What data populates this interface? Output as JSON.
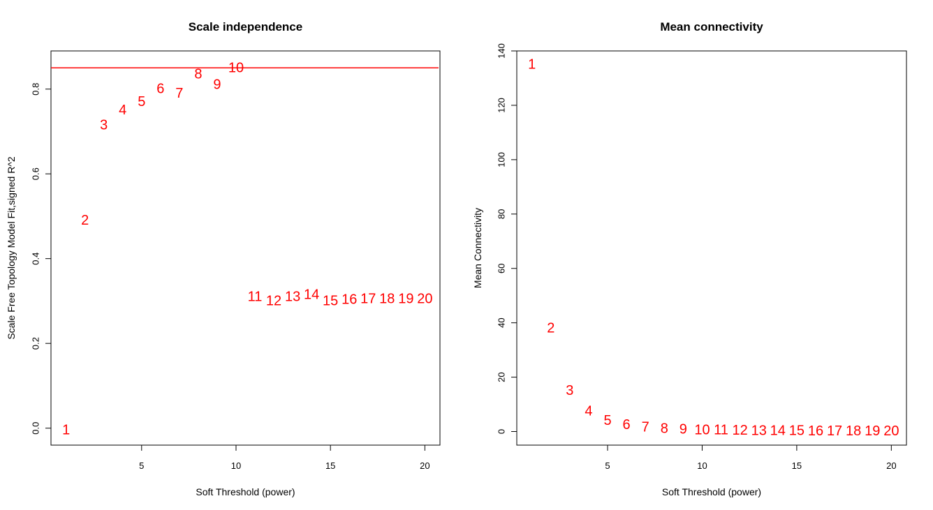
{
  "chart_data": [
    {
      "type": "scatter",
      "title": "Scale independence",
      "xlabel": "Soft Threshold (power)",
      "ylabel": "Scale Free Topology Model Fit,signed R^2",
      "xlim": [
        0.2,
        20.8
      ],
      "ylim": [
        -0.04,
        0.89
      ],
      "xticks": [
        "5",
        "10",
        "15",
        "20"
      ],
      "yticks": [
        "0.0",
        "0.2",
        "0.4",
        "0.6",
        "0.8"
      ],
      "reference_line_y": 0.85,
      "reference_line_color": "#ff0000",
      "point_color": "#ff0000",
      "points": [
        {
          "label": "1",
          "x": 1,
          "y": -0.005
        },
        {
          "label": "2",
          "x": 2,
          "y": 0.49
        },
        {
          "label": "3",
          "x": 3,
          "y": 0.715
        },
        {
          "label": "4",
          "x": 4,
          "y": 0.75
        },
        {
          "label": "5",
          "x": 5,
          "y": 0.77
        },
        {
          "label": "6",
          "x": 6,
          "y": 0.8
        },
        {
          "label": "7",
          "x": 7,
          "y": 0.79
        },
        {
          "label": "8",
          "x": 8,
          "y": 0.835
        },
        {
          "label": "9",
          "x": 9,
          "y": 0.81
        },
        {
          "label": "10",
          "x": 10,
          "y": 0.85
        },
        {
          "label": "11",
          "x": 11,
          "y": 0.31
        },
        {
          "label": "12",
          "x": 12,
          "y": 0.3
        },
        {
          "label": "13",
          "x": 13,
          "y": 0.31
        },
        {
          "label": "14",
          "x": 14,
          "y": 0.315
        },
        {
          "label": "15",
          "x": 15,
          "y": 0.3
        },
        {
          "label": "16",
          "x": 16,
          "y": 0.303
        },
        {
          "label": "17",
          "x": 17,
          "y": 0.305
        },
        {
          "label": "18",
          "x": 18,
          "y": 0.305
        },
        {
          "label": "19",
          "x": 19,
          "y": 0.305
        },
        {
          "label": "20",
          "x": 20,
          "y": 0.305
        }
      ]
    },
    {
      "type": "scatter",
      "title": "Mean connectivity",
      "xlabel": "Soft Threshold (power)",
      "ylabel": "Mean Connectivity",
      "xlim": [
        0.2,
        20.8
      ],
      "ylim": [
        -5,
        140
      ],
      "xticks": [
        "5",
        "10",
        "15",
        "20"
      ],
      "yticks": [
        "0",
        "20",
        "40",
        "60",
        "80",
        "100",
        "120",
        "140"
      ],
      "point_color": "#ff0000",
      "points": [
        {
          "label": "1",
          "x": 1,
          "y": 135
        },
        {
          "label": "2",
          "x": 2,
          "y": 38
        },
        {
          "label": "3",
          "x": 3,
          "y": 15
        },
        {
          "label": "4",
          "x": 4,
          "y": 7.5
        },
        {
          "label": "5",
          "x": 5,
          "y": 4
        },
        {
          "label": "6",
          "x": 6,
          "y": 2.5
        },
        {
          "label": "7",
          "x": 7,
          "y": 1.5
        },
        {
          "label": "8",
          "x": 8,
          "y": 1
        },
        {
          "label": "9",
          "x": 9,
          "y": 0.8
        },
        {
          "label": "10",
          "x": 10,
          "y": 0.5
        },
        {
          "label": "11",
          "x": 11,
          "y": 0.5
        },
        {
          "label": "12",
          "x": 12,
          "y": 0.4
        },
        {
          "label": "13",
          "x": 13,
          "y": 0.3
        },
        {
          "label": "14",
          "x": 14,
          "y": 0.2
        },
        {
          "label": "15",
          "x": 15,
          "y": 0.2
        },
        {
          "label": "16",
          "x": 16,
          "y": 0.1
        },
        {
          "label": "17",
          "x": 17,
          "y": 0.1
        },
        {
          "label": "18",
          "x": 18,
          "y": 0.1
        },
        {
          "label": "19",
          "x": 19,
          "y": 0.1
        },
        {
          "label": "20",
          "x": 20,
          "y": 0.1
        }
      ]
    }
  ]
}
